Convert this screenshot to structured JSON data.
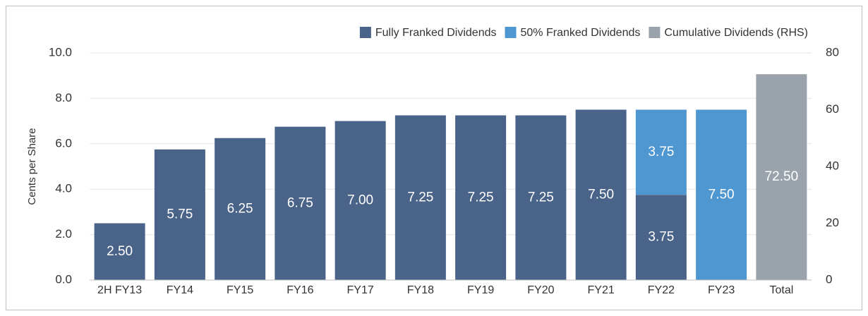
{
  "chart_data": {
    "type": "bar",
    "stacked": true,
    "y_label": "Cents per Share",
    "categories": [
      "2H FY13",
      "FY14",
      "FY15",
      "FY16",
      "FY17",
      "FY18",
      "FY19",
      "FY20",
      "FY21",
      "FY22",
      "FY23",
      "Total"
    ],
    "series": [
      {
        "name": "Fully Franked Dividends",
        "color": "#4a6489",
        "values": [
          2.5,
          5.75,
          6.25,
          6.75,
          7.0,
          7.25,
          7.25,
          7.25,
          7.5,
          3.75,
          null,
          null
        ],
        "value_labels": [
          "2.50",
          "5.75",
          "6.25",
          "6.75",
          "7.00",
          "7.25",
          "7.25",
          "7.25",
          "7.50",
          "3.75",
          null,
          null
        ]
      },
      {
        "name": "50% Franked Dividends",
        "color": "#4f97d1",
        "values": [
          null,
          null,
          null,
          null,
          null,
          null,
          null,
          null,
          null,
          3.75,
          7.5,
          null
        ],
        "value_labels": [
          null,
          null,
          null,
          null,
          null,
          null,
          null,
          null,
          null,
          "3.75",
          "7.50",
          null
        ]
      },
      {
        "name": "Cumulative Dividends (RHS)",
        "color": "#9aa3ab",
        "axis": "y2",
        "values": [
          null,
          null,
          null,
          null,
          null,
          null,
          null,
          null,
          null,
          null,
          null,
          72.5
        ],
        "value_labels": [
          null,
          null,
          null,
          null,
          null,
          null,
          null,
          null,
          null,
          null,
          null,
          "72.50"
        ]
      }
    ],
    "ylim": [
      0,
      10
    ],
    "yticks": [
      {
        "value": 0,
        "label": "0.0"
      },
      {
        "value": 2,
        "label": "2.0"
      },
      {
        "value": 4,
        "label": "4.0"
      },
      {
        "value": 6,
        "label": "6.0"
      },
      {
        "value": 8,
        "label": "8.0"
      },
      {
        "value": 10,
        "label": "10.0"
      }
    ],
    "y2lim": [
      0,
      80
    ],
    "y2ticks": [
      0,
      20,
      40,
      60,
      80
    ],
    "grid": true,
    "legend": "top-right"
  }
}
